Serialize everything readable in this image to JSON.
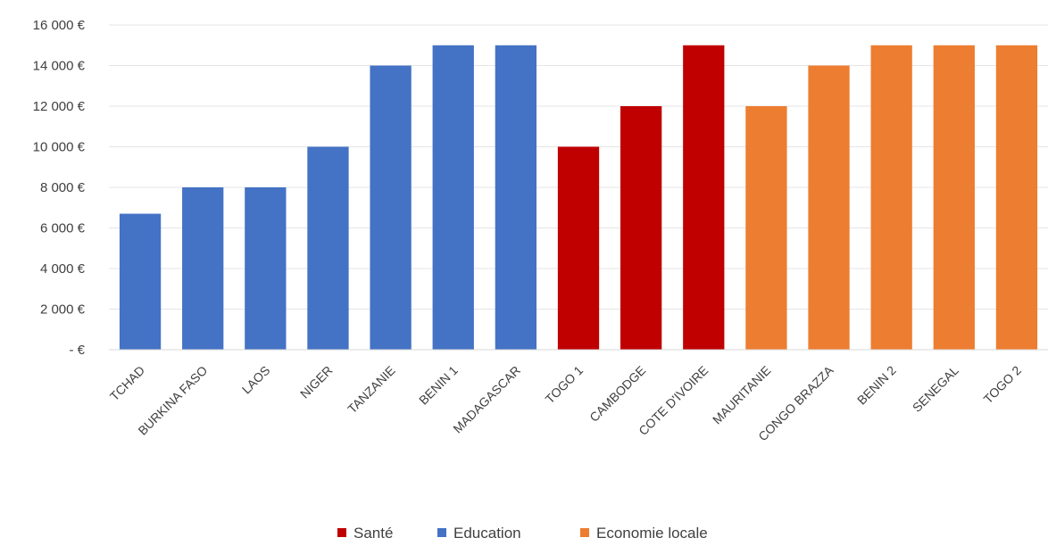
{
  "chart_data": {
    "type": "bar",
    "title": "",
    "xlabel": "",
    "ylabel": "",
    "ylim": [
      0,
      16000
    ],
    "y_ticks": [
      {
        "value": 0,
        "label": "-  €"
      },
      {
        "value": 2000,
        "label": "2 000 €"
      },
      {
        "value": 4000,
        "label": "4 000 €"
      },
      {
        "value": 6000,
        "label": "6 000 €"
      },
      {
        "value": 8000,
        "label": "8 000 €"
      },
      {
        "value": 10000,
        "label": "10 000 €"
      },
      {
        "value": 12000,
        "label": "12 000 €"
      },
      {
        "value": 14000,
        "label": "14 000 €"
      },
      {
        "value": 16000,
        "label": "16 000 €"
      }
    ],
    "grid": true,
    "legend_position": "bottom",
    "legend": [
      {
        "name": "Santé",
        "color": "#c00000"
      },
      {
        "name": "Education",
        "color": "#4472c4"
      },
      {
        "name": "Economie locale",
        "color": "#ed7d31"
      }
    ],
    "categories": [
      "TCHAD",
      "BURKINA FASO",
      "LAOS",
      "NIGER",
      "TANZANIE",
      "BENIN 1",
      "MADAGASCAR",
      "TOGO 1",
      "CAMBODGE",
      "COTE D'IVOIRE",
      "MAURITANIE",
      "CONGO BRAZZA",
      "BENIN 2",
      "SENEGAL",
      "TOGO 2"
    ],
    "values": [
      6700,
      8000,
      8000,
      10000,
      14000,
      15000,
      15000,
      10000,
      12000,
      15000,
      12000,
      14000,
      15000,
      15000,
      15000
    ],
    "bar_category": [
      "Education",
      "Education",
      "Education",
      "Education",
      "Education",
      "Education",
      "Education",
      "Santé",
      "Santé",
      "Santé",
      "Economie locale",
      "Economie locale",
      "Economie locale",
      "Economie locale",
      "Economie locale"
    ]
  }
}
